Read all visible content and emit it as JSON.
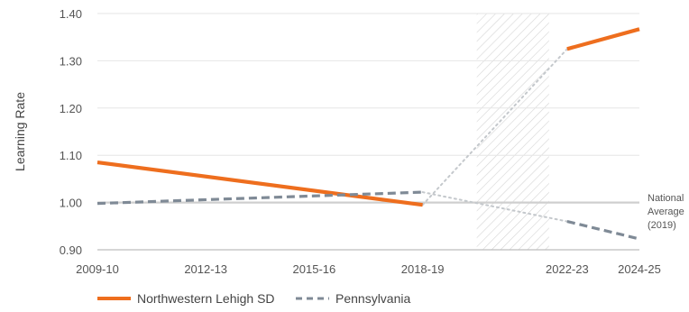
{
  "chart_data": {
    "type": "line",
    "ylabel": "Learning Rate",
    "ylim": [
      0.9,
      1.4
    ],
    "y_ticks": [
      "1.40",
      "1.30",
      "1.20",
      "1.10",
      "1.00",
      "0.90"
    ],
    "x_ticks": [
      {
        "label": "2009-10",
        "x": 2009
      },
      {
        "label": "2012-13",
        "x": 2012
      },
      {
        "label": "2015-16",
        "x": 2015
      },
      {
        "label": "2018-19",
        "x": 2018
      },
      {
        "label": "2022-23",
        "x": 2022
      },
      {
        "label": "2024-25",
        "x": 2024
      }
    ],
    "xlim": [
      2009,
      2024
    ],
    "gap_region": [
      2019.5,
      2021.5
    ],
    "reference_line": {
      "y": 1.0,
      "label": [
        "National",
        "Average",
        "(2019)"
      ]
    },
    "series": [
      {
        "name": "Northwestern Lehigh SD",
        "color": "#EE6E1E",
        "style": "solid",
        "segments": [
          [
            {
              "x": 2009,
              "y": 1.085
            },
            {
              "x": 2018,
              "y": 0.995
            }
          ],
          [
            {
              "x": 2022,
              "y": 1.325
            },
            {
              "x": 2024,
              "y": 1.367
            }
          ]
        ],
        "bridge": [
          {
            "x": 2018,
            "y": 0.995
          },
          {
            "x": 2022,
            "y": 1.325
          }
        ]
      },
      {
        "name": "Pennsylvania",
        "color": "#7F8A96",
        "style": "dashed",
        "segments": [
          [
            {
              "x": 2009,
              "y": 0.998
            },
            {
              "x": 2012,
              "y": 1.006
            },
            {
              "x": 2015,
              "y": 1.014
            },
            {
              "x": 2018,
              "y": 1.022
            }
          ],
          [
            {
              "x": 2022,
              "y": 0.96
            },
            {
              "x": 2024,
              "y": 0.923
            }
          ]
        ],
        "bridge": [
          {
            "x": 2018,
            "y": 1.022
          },
          {
            "x": 2022,
            "y": 0.96
          }
        ]
      }
    ],
    "legend": [
      {
        "label": "Northwestern Lehigh SD",
        "style": "solid",
        "color": "#EE6E1E"
      },
      {
        "label": "Pennsylvania",
        "style": "dashed",
        "color": "#7F8A96"
      }
    ]
  }
}
